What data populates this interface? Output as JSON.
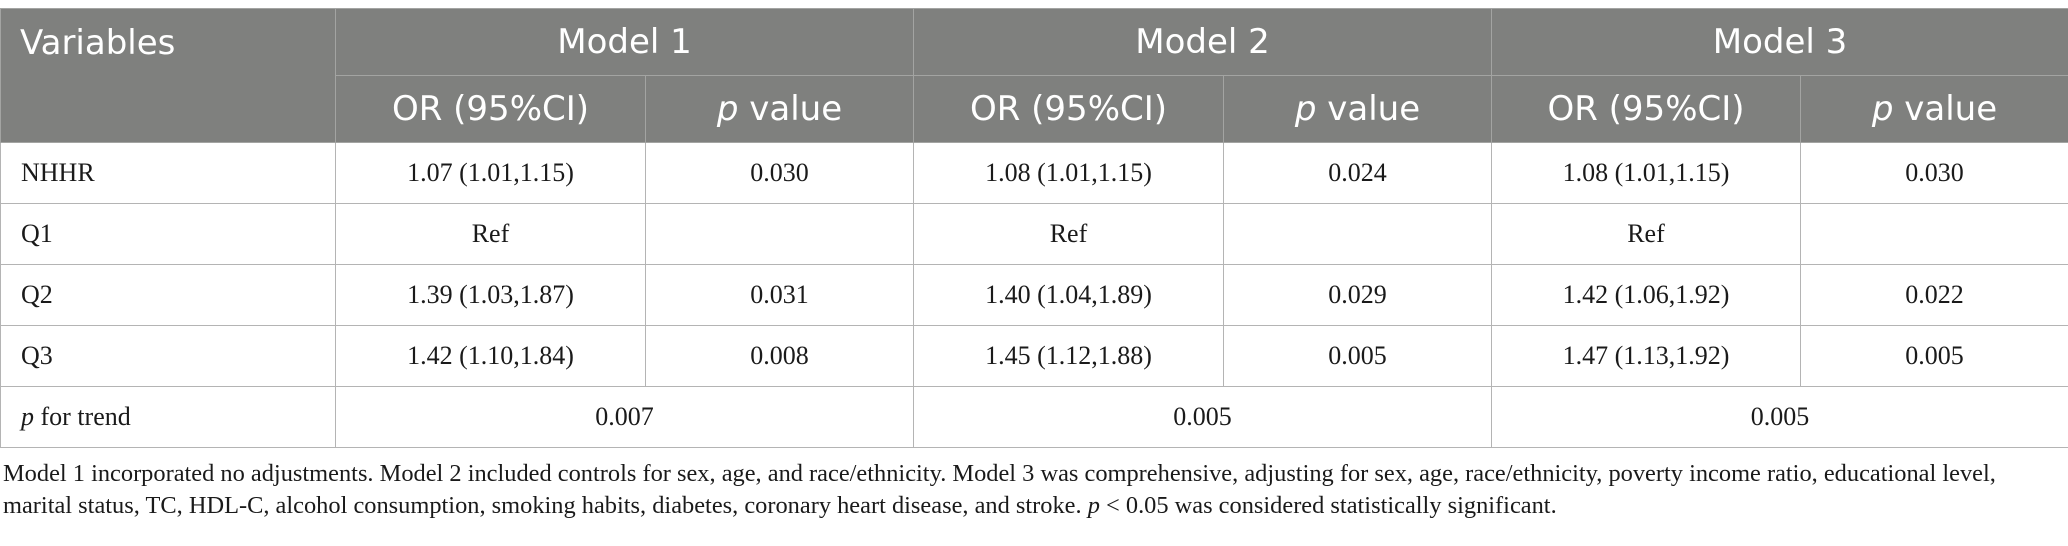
{
  "table": {
    "header": {
      "variables": "Variables",
      "models": [
        "Model 1",
        "Model 2",
        "Model 3"
      ],
      "or_label": "OR (95%CI)",
      "p_label_italic": "p",
      "p_label_rest": " value"
    },
    "rows": [
      {
        "label": "NHHR",
        "cells": [
          "1.07 (1.01,1.15)",
          "0.030",
          "1.08 (1.01,1.15)",
          "0.024",
          "1.08 (1.01,1.15)",
          "0.030"
        ]
      },
      {
        "label": "Q1",
        "cells": [
          "Ref",
          "",
          "Ref",
          "",
          "Ref",
          ""
        ]
      },
      {
        "label": "Q2",
        "cells": [
          "1.39 (1.03,1.87)",
          "0.031",
          "1.40 (1.04,1.89)",
          "0.029",
          "1.42 (1.06,1.92)",
          "0.022"
        ]
      },
      {
        "label": "Q3",
        "cells": [
          "1.42 (1.10,1.84)",
          "0.008",
          "1.45 (1.12,1.88)",
          "0.005",
          "1.47 (1.13,1.92)",
          "0.005"
        ]
      }
    ],
    "trend": {
      "label_italic": "p",
      "label_rest": " for trend",
      "values": [
        "0.007",
        "0.005",
        "0.005"
      ]
    }
  },
  "footnote": {
    "text": "Model 1 incorporated no adjustments. Model 2 included controls for sex, age, and race/ethnicity. Model 3 was comprehensive, adjusting for sex, age, race/ethnicity, poverty income ratio, educational level, marital status, TC, HDL-C, alcohol consumption, smoking habits, diabetes, coronary heart disease, and stroke. ",
    "p_italic": "p",
    "tail": " < 0.05 was considered statistically significant."
  }
}
